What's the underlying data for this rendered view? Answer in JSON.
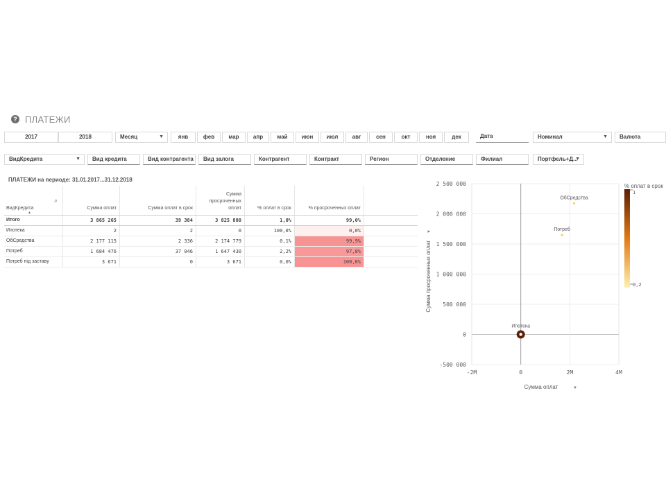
{
  "header": {
    "help_glyph": "?",
    "title": "ПЛАТЕЖИ"
  },
  "filters_row1": {
    "years": [
      "2017",
      "2018"
    ],
    "month_label": "Месяц",
    "months": [
      "янв",
      "фев",
      "мар",
      "апр",
      "май",
      "июн",
      "июл",
      "авг",
      "сен",
      "окт",
      "ноя",
      "дек"
    ],
    "date_label": "Дата",
    "nominal_label": "Номинал",
    "currency_label": "Валюта"
  },
  "filters_row2": {
    "loan_type_label": "ВидКредита",
    "items": [
      "Вид кредита",
      "Вид контрагента",
      "Вид залога",
      "Контрагент",
      "Контракт",
      "Регион",
      "Отделение",
      "Филиал"
    ],
    "portfolio_label": "Портфель+Д..."
  },
  "table": {
    "title": "ПЛАТЕЖИ на периоде: 31.01.2017...31.12.2018",
    "headers": [
      "ВидКредита",
      "Сумма оплат",
      "Сумма оплат в срок",
      "Сумма просроченных оплат",
      "% оплат в срок",
      "% просроченных оплат"
    ],
    "header_lines_col3": [
      "Сумма",
      "просроченных",
      "оплат"
    ],
    "total_row": [
      "Итого",
      "3 865 265",
      "39 384",
      "3 825 880",
      "1,0%",
      "99,0%"
    ],
    "rows": [
      [
        "Ипотека",
        "2",
        "2",
        "0",
        "100,0%",
        "0,0%"
      ],
      [
        "ОбСредства",
        "2 177 115",
        "2 336",
        "2 174 779",
        "0,1%",
        "99,9%"
      ],
      [
        "Потреб",
        "1 684 476",
        "37 046",
        "1 647 430",
        "2,2%",
        "97,8%"
      ],
      [
        "Потреб під заставу",
        "3 671",
        "0",
        "3 671",
        "0,0%",
        "100,0%"
      ]
    ],
    "overdue_fill_colors": [
      "#fdf0ef",
      "#f89393",
      "#f89898",
      "#f89393"
    ]
  },
  "chart_data": {
    "type": "scatter",
    "xlabel": "Сумма оплат",
    "ylabel": "Сумма просроченных оплат",
    "xlim": [
      -2000000,
      4000000
    ],
    "ylim": [
      -500000,
      2500000
    ],
    "x_ticks": [
      "-2M",
      "0",
      "2M",
      "4M"
    ],
    "y_ticks": [
      "2 500 000",
      "2 000 000",
      "1 500 000",
      "1 000 000",
      "500 000",
      "0",
      "-500 000"
    ],
    "points": [
      {
        "label": "ОбСредства",
        "x": 2177115,
        "y": 2174779,
        "color_value": 0.001
      },
      {
        "label": "Потреб",
        "x": 1684476,
        "y": 1647430,
        "color_value": 0.022
      },
      {
        "label": "Ипотека",
        "x": 2,
        "y": 0,
        "color_value": 1.0
      }
    ],
    "legend": {
      "title": "% оплат в срок",
      "max_label": "1",
      "min_label": "0,2",
      "position": "right"
    },
    "colors": {
      "high": "#5a1f06",
      "mid": "#e07a12",
      "low": "#fdf1b0"
    }
  }
}
